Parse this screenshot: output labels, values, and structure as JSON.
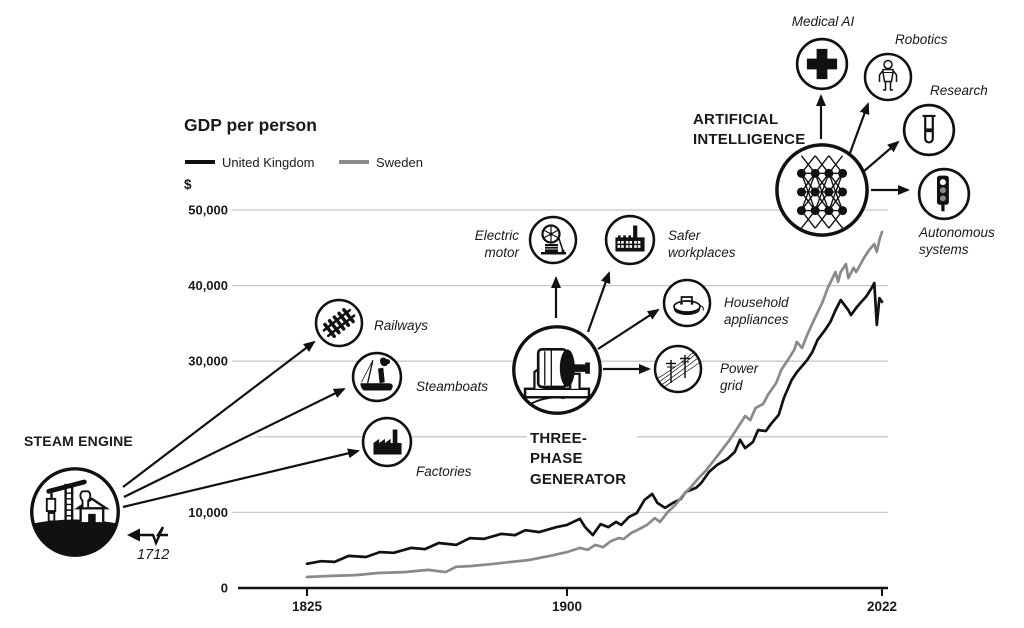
{
  "header": {
    "title": "GDP per person",
    "currency_label": "$"
  },
  "legend": {
    "items": [
      {
        "label": "United Kingdom",
        "color": "#111111"
      },
      {
        "label": "Sweden",
        "color": "#8a8a8a"
      }
    ]
  },
  "hubs": {
    "steam_engine": {
      "label": "STEAM ENGINE",
      "year": "1712",
      "icon": "steam-engine-icon",
      "spokes": [
        {
          "label": "Railways",
          "icon": "railway-track-icon"
        },
        {
          "label": "Steamboats",
          "icon": "steamboat-icon"
        },
        {
          "label": "Factories",
          "icon": "factory-icon"
        }
      ]
    },
    "three_phase_generator": {
      "label": "THREE-PHASE GENERATOR",
      "icon": "generator-icon",
      "spokes": [
        {
          "label": "Electric motor",
          "icon": "electric-motor-icon"
        },
        {
          "label": "Safer workplaces",
          "icon": "factory-windows-icon"
        },
        {
          "label": "Household appliances",
          "icon": "clothes-iron-icon"
        },
        {
          "label": "Power grid",
          "icon": "power-lines-icon"
        }
      ]
    },
    "artificial_intelligence": {
      "label": "ARTIFICIAL INTELLIGENCE",
      "icon": "neural-network-icon",
      "spokes": [
        {
          "label": "Medical AI",
          "icon": "medical-cross-icon"
        },
        {
          "label": "Robotics",
          "icon": "robot-icon"
        },
        {
          "label": "Research",
          "icon": "test-tube-icon"
        },
        {
          "label": "Autonomous systems",
          "icon": "traffic-light-icon"
        }
      ]
    }
  },
  "chart_data": {
    "type": "line",
    "title": "GDP per person",
    "unit": "$",
    "xlabel": "",
    "ylabel": "GDP per person ($)",
    "ylim": [
      0,
      52000
    ],
    "grid": true,
    "legend_position": "top-left",
    "x_ticks": [
      1825,
      1900,
      2022
    ],
    "y_ticks": [
      {
        "value": 0,
        "label": "0"
      },
      {
        "value": 10000,
        "label": "10,000"
      },
      {
        "value": 20000,
        "label": ""
      },
      {
        "value": 30000,
        "label": "30,000"
      },
      {
        "value": 40000,
        "label": "40,000"
      },
      {
        "value": 50000,
        "label": "50,000"
      }
    ],
    "series": [
      {
        "name": "United Kingdom",
        "color": "#111111",
        "points": [
          [
            1825,
            3200
          ],
          [
            1829,
            3550
          ],
          [
            1833,
            3450
          ],
          [
            1837,
            4250
          ],
          [
            1842,
            4100
          ],
          [
            1846,
            4750
          ],
          [
            1850,
            4650
          ],
          [
            1855,
            5300
          ],
          [
            1859,
            5150
          ],
          [
            1863,
            5950
          ],
          [
            1868,
            5700
          ],
          [
            1872,
            6600
          ],
          [
            1876,
            6500
          ],
          [
            1881,
            7150
          ],
          [
            1885,
            7000
          ],
          [
            1888,
            7650
          ],
          [
            1892,
            7400
          ],
          [
            1897,
            8050
          ],
          [
            1900,
            8350
          ],
          [
            1905,
            9150
          ],
          [
            1907,
            8050
          ],
          [
            1910,
            7000
          ],
          [
            1913,
            8450
          ],
          [
            1916,
            8050
          ],
          [
            1919,
            8750
          ],
          [
            1921,
            8350
          ],
          [
            1924,
            9400
          ],
          [
            1927,
            9900
          ],
          [
            1930,
            11650
          ],
          [
            1933,
            12450
          ],
          [
            1935,
            11250
          ],
          [
            1938,
            10600
          ],
          [
            1941,
            11250
          ],
          [
            1944,
            11750
          ],
          [
            1946,
            12700
          ],
          [
            1950,
            13250
          ],
          [
            1952,
            13900
          ],
          [
            1955,
            15350
          ],
          [
            1958,
            16250
          ],
          [
            1962,
            17050
          ],
          [
            1965,
            18000
          ],
          [
            1967,
            19600
          ],
          [
            1969,
            18500
          ],
          [
            1972,
            19300
          ],
          [
            1974,
            20900
          ],
          [
            1977,
            20750
          ],
          [
            1979,
            21700
          ],
          [
            1982,
            22900
          ],
          [
            1984,
            25150
          ],
          [
            1987,
            27500
          ],
          [
            1989,
            28550
          ],
          [
            1993,
            30150
          ],
          [
            1995,
            31200
          ],
          [
            1997,
            32800
          ],
          [
            2000,
            34150
          ],
          [
            2002,
            35200
          ],
          [
            2004,
            36750
          ],
          [
            2006,
            38100
          ],
          [
            2009,
            36750
          ],
          [
            2010,
            36100
          ],
          [
            2012,
            37050
          ],
          [
            2014,
            37850
          ],
          [
            2016,
            38600
          ],
          [
            2018,
            39700
          ],
          [
            2019,
            40350
          ],
          [
            2020,
            34800
          ],
          [
            2021,
            38350
          ],
          [
            2022,
            37850
          ]
        ]
      },
      {
        "name": "Sweden",
        "color": "#8a8a8a",
        "points": [
          [
            1825,
            1450
          ],
          [
            1832,
            1600
          ],
          [
            1839,
            1700
          ],
          [
            1846,
            2000
          ],
          [
            1853,
            2100
          ],
          [
            1860,
            2400
          ],
          [
            1865,
            2100
          ],
          [
            1868,
            2800
          ],
          [
            1872,
            2900
          ],
          [
            1878,
            3150
          ],
          [
            1884,
            3450
          ],
          [
            1889,
            3700
          ],
          [
            1895,
            4250
          ],
          [
            1900,
            4750
          ],
          [
            1905,
            5300
          ],
          [
            1908,
            5050
          ],
          [
            1911,
            5700
          ],
          [
            1914,
            5400
          ],
          [
            1917,
            6200
          ],
          [
            1920,
            6600
          ],
          [
            1922,
            6500
          ],
          [
            1925,
            7300
          ],
          [
            1928,
            7800
          ],
          [
            1931,
            8350
          ],
          [
            1934,
            9250
          ],
          [
            1936,
            8750
          ],
          [
            1939,
            10050
          ],
          [
            1942,
            11000
          ],
          [
            1945,
            12300
          ],
          [
            1948,
            13350
          ],
          [
            1951,
            14550
          ],
          [
            1954,
            15600
          ],
          [
            1957,
            16950
          ],
          [
            1960,
            18250
          ],
          [
            1963,
            19600
          ],
          [
            1966,
            21150
          ],
          [
            1969,
            22750
          ],
          [
            1971,
            22200
          ],
          [
            1973,
            23800
          ],
          [
            1976,
            24350
          ],
          [
            1978,
            25650
          ],
          [
            1981,
            27100
          ],
          [
            1983,
            28850
          ],
          [
            1986,
            30400
          ],
          [
            1988,
            31500
          ],
          [
            1989,
            32550
          ],
          [
            1991,
            31750
          ],
          [
            1993,
            33450
          ],
          [
            1996,
            35700
          ],
          [
            1999,
            37850
          ],
          [
            2001,
            39700
          ],
          [
            2004,
            41800
          ],
          [
            2005,
            40500
          ],
          [
            2006,
            41800
          ],
          [
            2008,
            42850
          ],
          [
            2009,
            41000
          ],
          [
            2011,
            42350
          ],
          [
            2012,
            41800
          ],
          [
            2015,
            43650
          ],
          [
            2017,
            44700
          ],
          [
            2019,
            45500
          ],
          [
            2020,
            44450
          ],
          [
            2021,
            46050
          ],
          [
            2022,
            47100
          ]
        ]
      }
    ]
  }
}
